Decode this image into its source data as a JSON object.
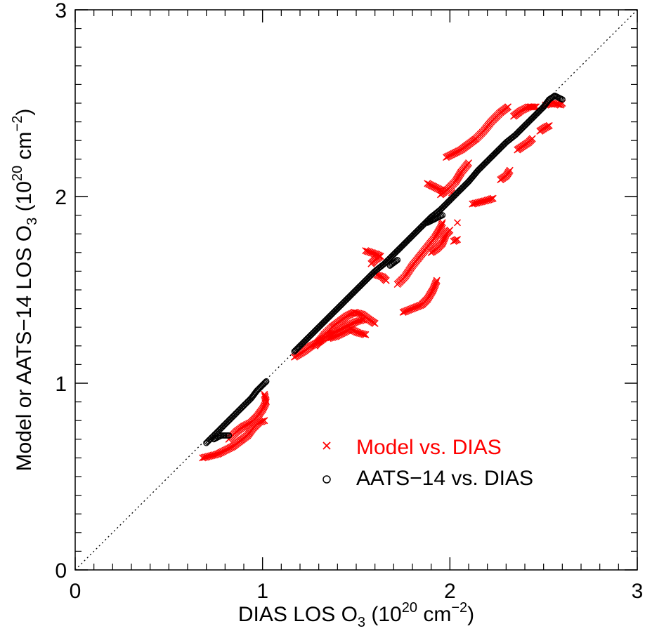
{
  "chart_data": {
    "type": "scatter",
    "xlabel": {
      "prefix": "DIAS LOS O",
      "sub": "3",
      "mid": " (10",
      "sup1": "20",
      "unit": " cm",
      "sup2": "−2",
      "suffix": ")"
    },
    "ylabel": {
      "prefix": "Model or AATS−14 LOS O",
      "sub": "3",
      "mid": " (10",
      "sup1": "20",
      "unit": " cm",
      "sup2": "−2",
      "suffix": ")"
    },
    "xlim": [
      0,
      3
    ],
    "ylim": [
      0,
      3
    ],
    "x_ticks": [
      0,
      1,
      2,
      3
    ],
    "y_ticks": [
      0,
      1,
      2,
      3
    ],
    "x_tick_labels": [
      "0",
      "1",
      "2",
      "3"
    ],
    "y_tick_labels": [
      "0",
      "1",
      "2",
      "3"
    ],
    "minor_tick_step": 0.1,
    "one_to_one_line": true,
    "legend_placement": "lower-right",
    "series": [
      {
        "name": "Model vs. DIAS",
        "marker": "x",
        "color": "#ff0000",
        "segments": [
          [
            [
              0.68,
              0.6
            ],
            [
              0.72,
              0.61
            ],
            [
              0.76,
              0.62
            ],
            [
              0.8,
              0.64
            ],
            [
              0.84,
              0.66
            ],
            [
              0.88,
              0.69
            ],
            [
              0.92,
              0.72
            ],
            [
              0.95,
              0.76
            ],
            [
              0.98,
              0.79
            ],
            [
              1.01,
              0.8
            ]
          ],
          [
            [
              0.82,
              0.7
            ],
            [
              0.86,
              0.74
            ],
            [
              0.9,
              0.77
            ],
            [
              0.94,
              0.79
            ],
            [
              0.97,
              0.82
            ],
            [
              1.0,
              0.86
            ],
            [
              1.02,
              0.9
            ],
            [
              1.01,
              0.94
            ]
          ],
          [
            [
              1.17,
              1.14
            ],
            [
              1.22,
              1.17
            ],
            [
              1.26,
              1.2
            ],
            [
              1.3,
              1.22
            ],
            [
              1.34,
              1.25
            ],
            [
              1.38,
              1.27
            ],
            [
              1.42,
              1.29
            ],
            [
              1.46,
              1.31
            ],
            [
              1.5,
              1.33
            ],
            [
              1.54,
              1.34
            ]
          ],
          [
            [
              1.28,
              1.2
            ],
            [
              1.33,
              1.26
            ],
            [
              1.37,
              1.3
            ],
            [
              1.41,
              1.33
            ],
            [
              1.45,
              1.36
            ],
            [
              1.49,
              1.38
            ],
            [
              1.53,
              1.37
            ],
            [
              1.57,
              1.34
            ],
            [
              1.6,
              1.32
            ]
          ],
          [
            [
              1.35,
              1.24
            ],
            [
              1.39,
              1.25
            ],
            [
              1.43,
              1.27
            ],
            [
              1.47,
              1.29
            ],
            [
              1.51,
              1.27
            ],
            [
              1.55,
              1.26
            ]
          ],
          [
            [
              1.55,
              1.71
            ],
            [
              1.58,
              1.7
            ],
            [
              1.61,
              1.69
            ],
            [
              1.63,
              1.68
            ],
            [
              1.6,
              1.66
            ],
            [
              1.58,
              1.64
            ]
          ],
          [
            [
              1.61,
              1.58
            ],
            [
              1.64,
              1.57
            ],
            [
              1.66,
              1.55
            ]
          ],
          [
            [
              1.75,
              1.38
            ],
            [
              1.8,
              1.4
            ],
            [
              1.85,
              1.42
            ],
            [
              1.88,
              1.45
            ],
            [
              1.91,
              1.5
            ],
            [
              1.93,
              1.55
            ]
          ],
          [
            [
              1.72,
              1.53
            ],
            [
              1.76,
              1.57
            ],
            [
              1.8,
              1.63
            ],
            [
              1.84,
              1.68
            ],
            [
              1.88,
              1.73
            ],
            [
              1.92,
              1.78
            ],
            [
              1.95,
              1.83
            ],
            [
              1.96,
              1.86
            ]
          ],
          [
            [
              1.9,
              1.7
            ],
            [
              1.93,
              1.72
            ],
            [
              1.96,
              1.75
            ],
            [
              1.98,
              1.8
            ],
            [
              2.0,
              1.82
            ]
          ],
          [
            [
              2.02,
              1.76
            ],
            [
              2.04,
              1.77
            ]
          ],
          [
            [
              1.88,
              2.07
            ],
            [
              1.92,
              2.05
            ],
            [
              1.96,
              2.03
            ]
          ],
          [
            [
              1.98,
              2.21
            ],
            [
              2.02,
              2.23
            ],
            [
              2.06,
              2.25
            ],
            [
              2.1,
              2.28
            ],
            [
              2.14,
              2.31
            ],
            [
              2.18,
              2.35
            ],
            [
              2.22,
              2.4
            ],
            [
              2.27,
              2.45
            ],
            [
              2.31,
              2.48
            ]
          ],
          [
            [
              1.95,
              2.01
            ],
            [
              1.99,
              2.04
            ],
            [
              2.03,
              2.08
            ],
            [
              2.06,
              2.13
            ],
            [
              2.1,
              2.18
            ]
          ],
          [
            [
              2.12,
              1.96
            ],
            [
              2.16,
              1.97
            ],
            [
              2.2,
              1.98
            ],
            [
              2.23,
              1.99
            ]
          ],
          [
            [
              2.27,
              2.09
            ],
            [
              2.3,
              2.11
            ],
            [
              2.32,
              2.14
            ]
          ],
          [
            [
              2.36,
              2.25
            ],
            [
              2.39,
              2.27
            ],
            [
              2.42,
              2.29
            ],
            [
              2.44,
              2.31
            ]
          ],
          [
            [
              2.48,
              2.35
            ],
            [
              2.51,
              2.37
            ],
            [
              2.53,
              2.38
            ]
          ],
          [
            [
              2.34,
              2.43
            ],
            [
              2.38,
              2.46
            ],
            [
              2.42,
              2.48
            ],
            [
              2.46,
              2.48
            ]
          ],
          [
            [
              2.51,
              2.49
            ],
            [
              2.55,
              2.5
            ],
            [
              2.59,
              2.49
            ],
            [
              2.6,
              2.5
            ]
          ],
          [
            [
              2.01,
              2.02
            ]
          ],
          [
            [
              2.04,
              1.86
            ]
          ]
        ]
      },
      {
        "name": "AATS−14 vs. DIAS",
        "marker": "circle",
        "color": "#000000",
        "segments": [
          [
            [
              0.7,
              0.68
            ],
            [
              0.74,
              0.72
            ],
            [
              0.78,
              0.76
            ],
            [
              0.82,
              0.8
            ],
            [
              0.86,
              0.84
            ],
            [
              0.9,
              0.88
            ],
            [
              0.94,
              0.92
            ],
            [
              0.97,
              0.96
            ],
            [
              1.0,
              0.99
            ],
            [
              1.02,
              1.01
            ]
          ],
          [
            [
              0.74,
              0.7
            ],
            [
              0.78,
              0.72
            ],
            [
              0.82,
              0.72
            ]
          ],
          [
            [
              1.17,
              1.17
            ],
            [
              1.2,
              1.2
            ],
            [
              1.25,
              1.25
            ],
            [
              1.3,
              1.3
            ],
            [
              1.35,
              1.35
            ],
            [
              1.4,
              1.4
            ],
            [
              1.45,
              1.45
            ],
            [
              1.5,
              1.5
            ],
            [
              1.55,
              1.55
            ],
            [
              1.6,
              1.6
            ],
            [
              1.65,
              1.64
            ],
            [
              1.7,
              1.69
            ],
            [
              1.75,
              1.74
            ],
            [
              1.8,
              1.79
            ],
            [
              1.85,
              1.84
            ],
            [
              1.9,
              1.89
            ],
            [
              1.95,
              1.93
            ],
            [
              2.0,
              1.98
            ],
            [
              2.05,
              2.03
            ],
            [
              2.1,
              2.08
            ],
            [
              2.15,
              2.14
            ],
            [
              2.2,
              2.19
            ],
            [
              2.25,
              2.24
            ],
            [
              2.3,
              2.29
            ],
            [
              2.35,
              2.33
            ],
            [
              2.4,
              2.38
            ],
            [
              2.45,
              2.43
            ],
            [
              2.5,
              2.48
            ],
            [
              2.53,
              2.52
            ],
            [
              2.56,
              2.54
            ],
            [
              2.6,
              2.52
            ]
          ],
          [
            [
              1.88,
              1.86
            ],
            [
              1.92,
              1.88
            ],
            [
              1.96,
              1.9
            ]
          ],
          [
            [
              1.68,
              1.63
            ],
            [
              1.72,
              1.66
            ]
          ]
        ]
      }
    ]
  }
}
